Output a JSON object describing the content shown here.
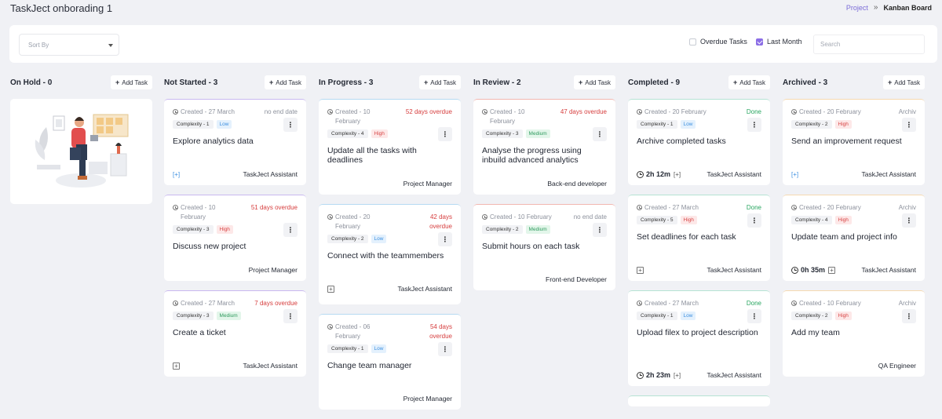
{
  "page": {
    "title": "TaskJect onborading 1"
  },
  "breadcrumb": {
    "link": "Project",
    "separator": "»",
    "current": "Kanban Board"
  },
  "filters": {
    "sort_placeholder": "Sort By",
    "overdue_label": "Overdue Tasks",
    "overdue_checked": false,
    "last_month_label": "Last Month",
    "last_month_checked": true,
    "search_placeholder": "Search"
  },
  "add_task_label": "Add Task",
  "columns": [
    {
      "title": "On Hold - 0",
      "accent": "#c9b8f0",
      "cards": []
    },
    {
      "title": "Not Started - 3",
      "accent": "#c9b8f0",
      "cards": [
        {
          "created": "Created - 27 March",
          "status": "no end date",
          "status_type": "nodate",
          "complexity": "Complexity - 1",
          "priority": "Low",
          "title": "Explore analytics data",
          "footer_icon": "[+]",
          "timer": "",
          "assignee": "TaskJect Assistant"
        },
        {
          "created": "Created - 10 February",
          "status": "51 days overdue",
          "status_type": "overdue",
          "complexity": "Complexity - 3",
          "priority": "High",
          "title": "Discuss new project",
          "footer_icon": "",
          "timer": "",
          "assignee": "Project Manager"
        },
        {
          "created": "Created - 27 March",
          "status": "7 days overdue",
          "status_type": "overdue",
          "complexity": "Complexity - 3",
          "priority": "Medium",
          "title": "Create a ticket",
          "footer_icon": "+",
          "timer": "",
          "assignee": "TaskJect Assistant"
        }
      ]
    },
    {
      "title": "In Progress - 3",
      "accent": "#b6daf2",
      "cards": [
        {
          "created": "Created - 10 February",
          "status": "52 days overdue",
          "status_type": "overdue",
          "complexity": "Complexity - 4",
          "priority": "High",
          "title": "Update all the tasks with deadlines",
          "footer_icon": "",
          "timer": "",
          "assignee": "Project Manager"
        },
        {
          "created": "Created - 20 February",
          "status": "42 days overdue",
          "status_type": "overdue",
          "complexity": "Complexity - 2",
          "priority": "Low",
          "title": "Connect with the teammembers",
          "footer_icon": "+",
          "timer": "",
          "assignee": "TaskJect Assistant"
        },
        {
          "created": "Created - 06 February",
          "status": "54 days overdue",
          "status_type": "overdue",
          "complexity": "Complexity - 1",
          "priority": "Low",
          "title": "Change team manager",
          "footer_icon": "",
          "timer": "",
          "assignee": "Project Manager"
        }
      ]
    },
    {
      "title": "In Review - 2",
      "accent": "#f2b7b0",
      "cards": [
        {
          "created": "Created - 10 February",
          "status": "47 days overdue",
          "status_type": "overdue",
          "complexity": "Complexity - 3",
          "priority": "Medium",
          "title": "Analyse the progress using inbuild advanced analytics",
          "footer_icon": "",
          "timer": "",
          "assignee": "Back-end developer"
        },
        {
          "created": "Created - 10 February",
          "status": "no end date",
          "status_type": "nodate",
          "complexity": "Complexity - 2",
          "priority": "Medium",
          "title": "Submit hours on each task",
          "footer_icon": "",
          "timer": "",
          "assignee": "Front-end Developer"
        }
      ]
    },
    {
      "title": "Completed - 9",
      "accent": "#b5e3d4",
      "cards": [
        {
          "created": "Created - 20 February",
          "status": "Done",
          "status_type": "done",
          "complexity": "Complexity - 1",
          "priority": "Low",
          "title": "Archive completed tasks",
          "footer_icon": "",
          "timer": "2h 12m",
          "assignee": "TaskJect Assistant"
        },
        {
          "created": "Created - 27 March",
          "status": "Done",
          "status_type": "done",
          "complexity": "Complexity - 5",
          "priority": "High",
          "title": "Set deadlines for each task",
          "footer_icon": "+",
          "timer": "",
          "assignee": "TaskJect Assistant"
        },
        {
          "created": "Created - 27 March",
          "status": "Done",
          "status_type": "done",
          "complexity": "Complexity - 1",
          "priority": "Low",
          "title": "Upload filex to project description",
          "footer_icon": "",
          "timer": "2h 23m",
          "assignee": "TaskJect Assistant"
        },
        {
          "created": "",
          "status": "",
          "status_type": "",
          "complexity": "",
          "priority": "",
          "title": "",
          "footer_icon": "",
          "timer": "",
          "assignee": ""
        }
      ]
    },
    {
      "title": "Archived - 3",
      "accent": "#f6d9b0",
      "cards": [
        {
          "created": "Created - 20 February",
          "status": "Archiv",
          "status_type": "archiv",
          "complexity": "Complexity - 2",
          "priority": "High",
          "title": "Send an improvement request",
          "footer_icon": "[+]",
          "timer": "",
          "assignee": "TaskJect Assistant"
        },
        {
          "created": "Created - 20 February",
          "status": "Archiv",
          "status_type": "archiv",
          "complexity": "Complexity - 4",
          "priority": "High",
          "title": "Update team and project info",
          "footer_icon": "",
          "timer": "0h 35m",
          "assignee": "TaskJect Assistant"
        },
        {
          "created": "Created - 10 February",
          "status": "Archiv",
          "status_type": "archiv",
          "complexity": "Complexity - 2",
          "priority": "High",
          "title": "Add my team",
          "footer_icon": "",
          "timer": "",
          "assignee": "QA Engineer"
        }
      ]
    }
  ]
}
